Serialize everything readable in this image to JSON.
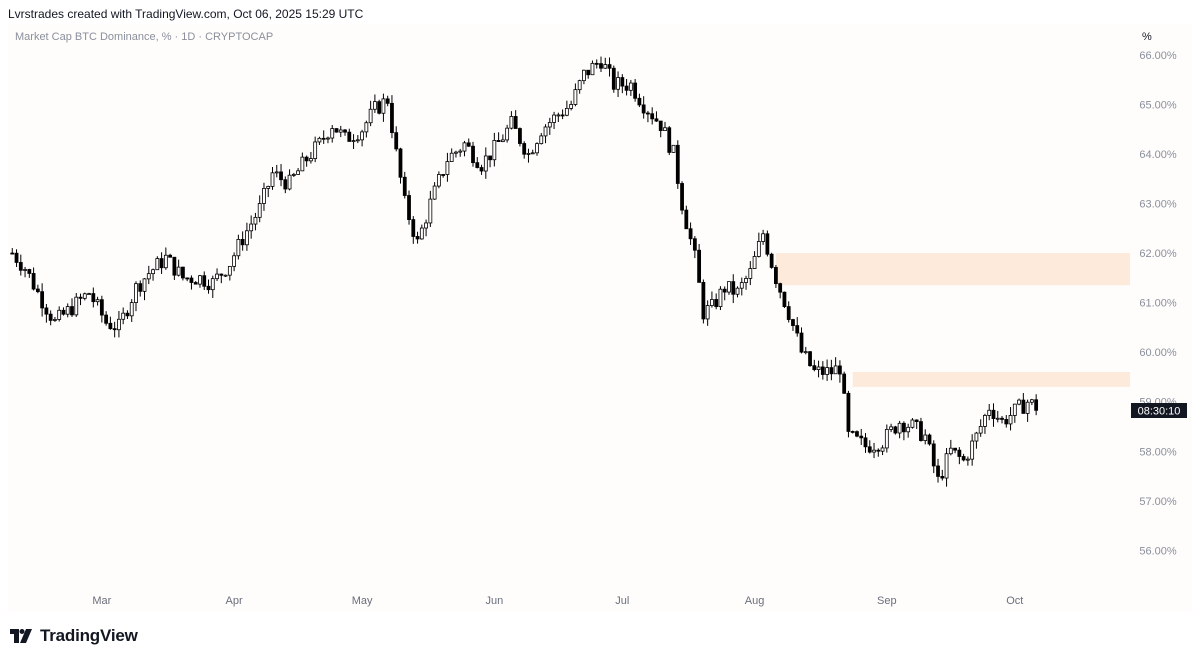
{
  "header": {
    "attribution": "Lvrstrades created with TradingView.com, Oct 06, 2025 15:29 UTC"
  },
  "legend": {
    "symbol": "Market Cap BTC Dominance, % · 1D · CRYPTOCAP"
  },
  "axis": {
    "unit": "%"
  },
  "price_label": {
    "text": "08:30:10"
  },
  "brand": {
    "name": "TradingView",
    "logo": "tradingview-logo"
  },
  "colors": {
    "up": "#ffffff",
    "down": "#000000",
    "wick": "#000000",
    "zone": "#fdeadb",
    "axis_text": "#8a8f9c"
  },
  "chart_data": {
    "type": "candlestick",
    "title": "Market Cap BTC Dominance, % · 1D · CRYPTOCAP",
    "xlabel": "",
    "ylabel": "",
    "ylim": [
      55.2,
      66.3
    ],
    "y_ticks": [
      56,
      57,
      58,
      59,
      60,
      61,
      62,
      63,
      64,
      65,
      66
    ],
    "y_tick_labels": [
      "56.00%",
      "57.00%",
      "58.00%",
      "59.00%",
      "60.00%",
      "61.00%",
      "62.00%",
      "63.00%",
      "64.00%",
      "65.00%",
      "66.00%"
    ],
    "x_ticks": [
      "2025-03-01",
      "2025-04-01",
      "2025-05-01",
      "2025-06-01",
      "2025-07-01",
      "2025-08-01",
      "2025-09-01",
      "2025-10-01"
    ],
    "x_tick_labels": [
      "Mar",
      "Apr",
      "May",
      "Jun",
      "Jul",
      "Aug",
      "Sep",
      "Oct"
    ],
    "xlim": [
      "2025-02-07",
      "2025-10-28"
    ],
    "grid": false,
    "zones": [
      {
        "x_start": "2025-08-06",
        "x_end": "2025-10-28",
        "y_low": 61.35,
        "y_high": 62.0
      },
      {
        "x_start": "2025-08-24",
        "x_end": "2025-10-28",
        "y_low": 59.3,
        "y_high": 59.6
      }
    ],
    "anchors": [
      [
        "2025-02-08",
        62.0
      ],
      [
        "2025-02-11",
        61.7
      ],
      [
        "2025-02-14",
        61.2
      ],
      [
        "2025-02-18",
        60.6
      ],
      [
        "2025-02-22",
        60.9
      ],
      [
        "2025-02-26",
        61.2
      ],
      [
        "2025-03-02",
        60.6
      ],
      [
        "2025-03-05",
        60.5
      ],
      [
        "2025-03-09",
        61.3
      ],
      [
        "2025-03-12",
        61.6
      ],
      [
        "2025-03-16",
        61.9
      ],
      [
        "2025-03-20",
        61.5
      ],
      [
        "2025-03-24",
        61.5
      ],
      [
        "2025-03-27",
        61.4
      ],
      [
        "2025-03-31",
        61.8
      ],
      [
        "2025-04-03",
        62.3
      ],
      [
        "2025-04-07",
        62.9
      ],
      [
        "2025-04-10",
        63.6
      ],
      [
        "2025-04-14",
        63.4
      ],
      [
        "2025-04-18",
        63.9
      ],
      [
        "2025-04-21",
        64.2
      ],
      [
        "2025-04-24",
        64.6
      ],
      [
        "2025-04-27",
        64.3
      ],
      [
        "2025-05-01",
        64.5
      ],
      [
        "2025-05-04",
        64.9
      ],
      [
        "2025-05-07",
        65.1
      ],
      [
        "2025-05-09",
        64.0
      ],
      [
        "2025-05-11",
        63.0
      ],
      [
        "2025-05-14",
        62.2
      ],
      [
        "2025-05-17",
        63.0
      ],
      [
        "2025-05-21",
        63.9
      ],
      [
        "2025-05-25",
        64.2
      ],
      [
        "2025-05-29",
        63.8
      ],
      [
        "2025-06-01",
        64.1
      ],
      [
        "2025-06-05",
        64.6
      ],
      [
        "2025-06-09",
        64.0
      ],
      [
        "2025-06-12",
        64.5
      ],
      [
        "2025-06-16",
        64.8
      ],
      [
        "2025-06-19",
        65.0
      ],
      [
        "2025-06-22",
        65.6
      ],
      [
        "2025-06-26",
        65.9
      ],
      [
        "2025-06-29",
        65.4
      ],
      [
        "2025-07-03",
        65.4
      ],
      [
        "2025-07-06",
        65.0
      ],
      [
        "2025-07-10",
        64.6
      ],
      [
        "2025-07-13",
        64.0
      ],
      [
        "2025-07-15",
        63.0
      ],
      [
        "2025-07-18",
        61.9
      ],
      [
        "2025-07-20",
        60.8
      ],
      [
        "2025-07-22",
        60.9
      ],
      [
        "2025-07-25",
        61.3
      ],
      [
        "2025-07-28",
        61.2
      ],
      [
        "2025-07-31",
        61.6
      ],
      [
        "2025-08-03",
        62.4
      ],
      [
        "2025-08-06",
        61.5
      ],
      [
        "2025-08-09",
        60.8
      ],
      [
        "2025-08-12",
        60.0
      ],
      [
        "2025-08-15",
        59.6
      ],
      [
        "2025-08-19",
        59.6
      ],
      [
        "2025-08-21",
        59.7
      ],
      [
        "2025-08-23",
        58.3
      ],
      [
        "2025-08-27",
        58.1
      ],
      [
        "2025-08-31",
        58.2
      ],
      [
        "2025-09-04",
        58.6
      ],
      [
        "2025-09-07",
        58.5
      ],
      [
        "2025-09-10",
        58.3
      ],
      [
        "2025-09-13",
        57.4
      ],
      [
        "2025-09-16",
        58.0
      ],
      [
        "2025-09-19",
        57.8
      ],
      [
        "2025-09-22",
        58.3
      ],
      [
        "2025-09-25",
        58.9
      ],
      [
        "2025-09-28",
        58.6
      ],
      [
        "2025-10-01",
        58.8
      ],
      [
        "2025-10-04",
        59.0
      ],
      [
        "2025-10-06",
        58.9
      ]
    ]
  }
}
